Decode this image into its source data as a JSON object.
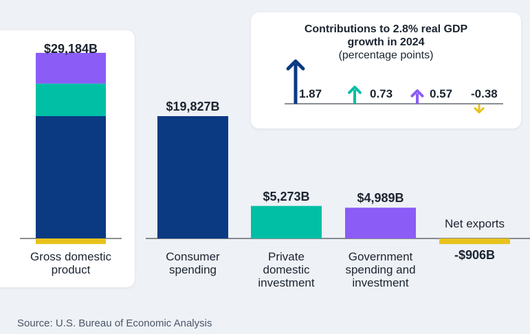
{
  "chart_data": [
    {
      "type": "bar",
      "categories": [
        "Gross domestic product",
        "Consumer spending",
        "Private domestic investment",
        "Government spending and investment",
        "Net exports"
      ],
      "category_labels": [
        "Gross domestic\nproduct",
        "Consumer\nspending",
        "Private\ndomestic\ninvestment",
        "Government\nspending and\ninvestment",
        "Net exports"
      ],
      "values": [
        29184,
        19827,
        5273,
        4989,
        -906
      ],
      "value_labels": [
        "$29,184B",
        "$19,827B",
        "$5,273B",
        "$4,989B",
        "-$906B"
      ],
      "units": "billions of dollars",
      "gdp_stack": [
        19827,
        5273,
        4989,
        -906
      ],
      "ylim": [
        -906,
        29184
      ],
      "grid": false,
      "legend": "none",
      "colors": [
        "#0b3a82",
        "#0b3a82",
        "#00bfa5",
        "#8b5cf6",
        "#e8c21c"
      ]
    },
    {
      "type": "bar",
      "title": "Contributions to 2.8% real GDP\ngrowth in 2024",
      "subtitle": "(percentage points)",
      "values": [
        1.87,
        0.73,
        0.57,
        -0.38
      ],
      "value_labels": [
        "1.87",
        "0.73",
        "0.57",
        "-0.38"
      ],
      "colors": [
        "#0b3a82",
        "#00bfa5",
        "#8b5cf6",
        "#e8c21c"
      ],
      "icons": [
        "arrow-up-icon",
        "arrow-up-icon",
        "arrow-up-icon",
        "arrow-down-icon"
      ]
    }
  ],
  "source": "Source: U.S. Bureau of Economic Analysis"
}
